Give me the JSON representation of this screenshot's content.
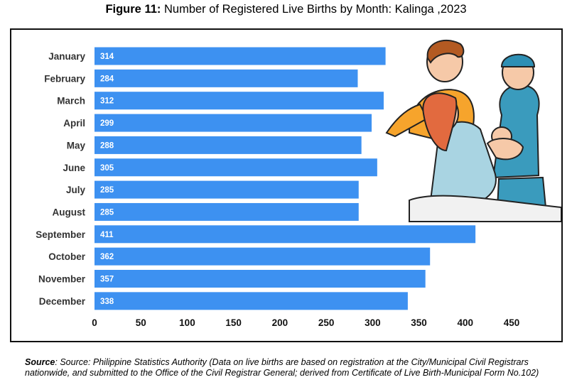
{
  "figure": {
    "label": "Figure 11:",
    "title": "Number of Registered Live Births by Month: Kalinga ,2023"
  },
  "source": {
    "label": "Source",
    "text": ": Source: Philippine Statistics Authority (Data on live births are based on registration at the City/Municipal Civil Registrars nationwide, and submitted to the Office of the Civil Registrar General; derived from Certificate of Live Birth-Municipal Form No.102)"
  },
  "colors": {
    "bar": "#3d91f1",
    "bar_label": "#ffffff"
  },
  "chart_data": {
    "type": "bar",
    "orientation": "horizontal",
    "title": "Number of Registered Live Births by Month: Kalinga ,2023",
    "categories": [
      "January",
      "February",
      "March",
      "April",
      "May",
      "June",
      "July",
      "August",
      "September",
      "October",
      "November",
      "December"
    ],
    "values": [
      314,
      284,
      312,
      299,
      288,
      305,
      285,
      285,
      411,
      362,
      357,
      338
    ],
    "xlabel": "",
    "ylabel": "",
    "xlim": [
      0,
      450
    ],
    "xticks": [
      0,
      50,
      100,
      150,
      200,
      250,
      300,
      350,
      400,
      450
    ],
    "grid": false,
    "legend": "none"
  },
  "illustration": {
    "name": "family-with-newborn-illustration"
  }
}
